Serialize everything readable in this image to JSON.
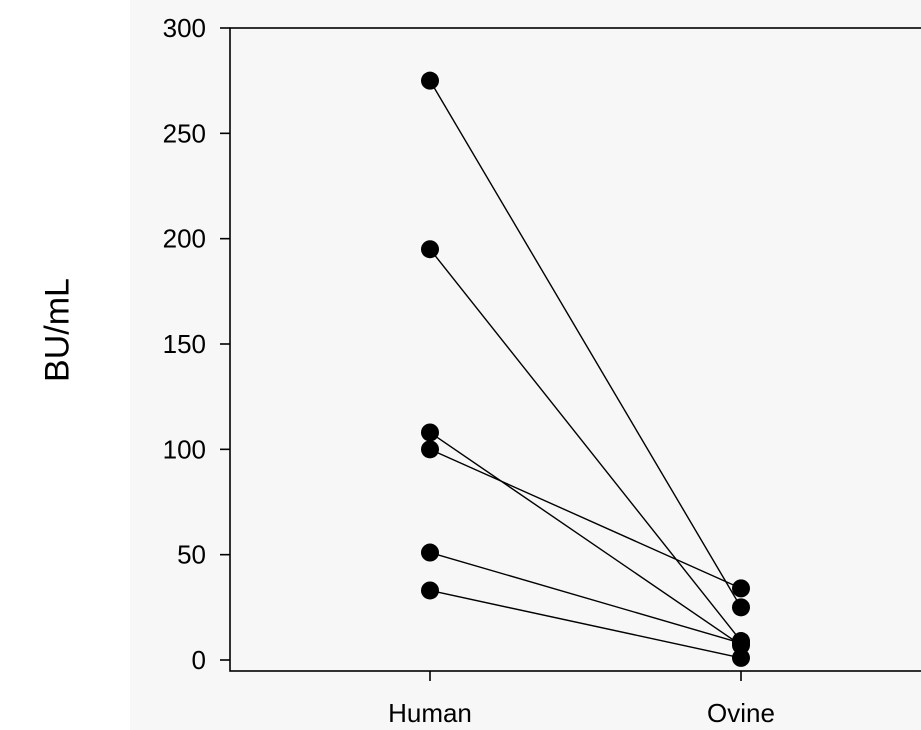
{
  "chart_data": {
    "type": "line",
    "ylabel": "BU/mL",
    "xlabel": "",
    "categories": [
      "Human",
      "Ovine"
    ],
    "ylim": [
      0,
      300
    ],
    "yticks": [
      0,
      50,
      100,
      150,
      200,
      250,
      300
    ],
    "grid": false,
    "legend": "none",
    "series": [
      {
        "values": [
          275,
          25
        ]
      },
      {
        "values": [
          195,
          9
        ]
      },
      {
        "values": [
          108,
          7
        ]
      },
      {
        "values": [
          100,
          34
        ]
      },
      {
        "values": [
          51,
          8
        ]
      },
      {
        "values": [
          33,
          1
        ]
      }
    ]
  },
  "colors": {
    "marker": "#000000",
    "line": "#000000",
    "panel": "#f7f7f7"
  }
}
